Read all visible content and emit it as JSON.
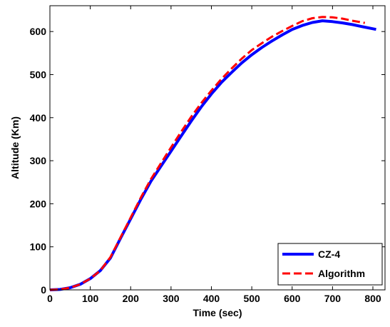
{
  "chart_data": {
    "type": "line",
    "title": "",
    "xlabel": "Time (sec)",
    "ylabel": "Altitude (Km)",
    "xlim": [
      0,
      830
    ],
    "ylim": [
      0,
      660
    ],
    "xticks": [
      "0",
      "100",
      "200",
      "300",
      "400",
      "500",
      "600",
      "700",
      "800"
    ],
    "yticks": [
      "0",
      "100",
      "200",
      "300",
      "400",
      "500",
      "600"
    ],
    "grid": false,
    "legend_position": "bottom-right",
    "series": [
      {
        "name": "CZ-4",
        "color": "#0000ff",
        "style": "solid",
        "x": [
          0,
          25,
          50,
          75,
          100,
          125,
          150,
          175,
          200,
          225,
          250,
          275,
          300,
          325,
          350,
          375,
          400,
          425,
          450,
          475,
          500,
          525,
          550,
          575,
          600,
          625,
          650,
          675,
          700,
          725,
          750,
          775,
          808
        ],
        "y": [
          0,
          1,
          5,
          13,
          26,
          45,
          74,
          120,
          165,
          210,
          252,
          287,
          322,
          357,
          392,
          425,
          455,
          482,
          505,
          527,
          546,
          563,
          578,
          592,
          605,
          614,
          621,
          625,
          623,
          620,
          616,
          611,
          605
        ]
      },
      {
        "name": "Algorithm",
        "color": "#ff0000",
        "style": "dashed",
        "x": [
          0,
          25,
          50,
          75,
          100,
          125,
          150,
          175,
          200,
          225,
          250,
          275,
          300,
          325,
          350,
          375,
          400,
          425,
          450,
          475,
          500,
          525,
          550,
          575,
          600,
          625,
          650,
          675,
          700,
          725,
          750,
          780
        ],
        "y": [
          0,
          1,
          5,
          13,
          26,
          45,
          76,
          122,
          168,
          214,
          257,
          294,
          331,
          367,
          402,
          434,
          463,
          490,
          514,
          537,
          557,
          573,
          588,
          601,
          613,
          624,
          631,
          634,
          633,
          630,
          625,
          620
        ]
      }
    ]
  }
}
